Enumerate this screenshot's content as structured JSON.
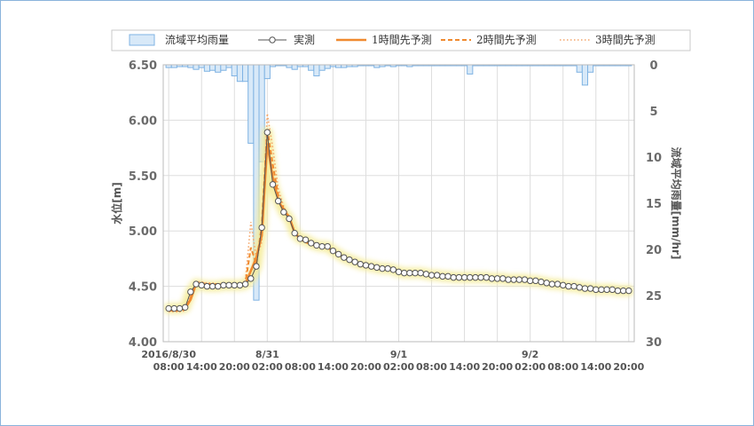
{
  "chart_data": {
    "type": "line",
    "y_left": {
      "label": "水位[m]",
      "ylim": [
        4.0,
        6.5
      ],
      "ticks": [
        "4.00",
        "4.50",
        "5.00",
        "5.50",
        "6.00",
        "6.50"
      ]
    },
    "y_right": {
      "label": "流域平均雨量[mm/hr]",
      "ylim": [
        0,
        30
      ],
      "ticks": [
        "0",
        "5",
        "10",
        "15",
        "20",
        "25",
        "30"
      ],
      "inverted": true
    },
    "x_axis": {
      "range_hours": [
        -1,
        61
      ],
      "tick_labels": [
        {
          "h": 0,
          "time": "08:00",
          "date": "2016/8/30"
        },
        {
          "h": 6,
          "time": "14:00",
          "date": ""
        },
        {
          "h": 12,
          "time": "20:00",
          "date": ""
        },
        {
          "h": 18,
          "time": "02:00",
          "date": "8/31"
        },
        {
          "h": 24,
          "time": "08:00",
          "date": ""
        },
        {
          "h": 30,
          "time": "14:00",
          "date": ""
        },
        {
          "h": 36,
          "time": "20:00",
          "date": ""
        },
        {
          "h": 42,
          "time": "02:00",
          "date": "9/1"
        },
        {
          "h": 48,
          "time": "08:00",
          "date": ""
        },
        {
          "h": 54,
          "time": "14:00",
          "date": ""
        },
        {
          "h": 60,
          "time": "20:00",
          "date": ""
        },
        {
          "h": 66,
          "time": "02:00",
          "date": "9/2"
        },
        {
          "h": 72,
          "time": "08:00",
          "date": ""
        },
        {
          "h": 78,
          "time": "14:00",
          "date": ""
        },
        {
          "h": 84,
          "time": "20:00",
          "date": ""
        }
      ]
    },
    "legend": [
      {
        "label": "流域平均雨量",
        "kind": "bar"
      },
      {
        "label": "実測",
        "kind": "marker-line"
      },
      {
        "label": "1時間先予測",
        "kind": "solid"
      },
      {
        "label": "2時間先予測",
        "kind": "dashed"
      },
      {
        "label": "3時間先予測",
        "kind": "dotted"
      }
    ],
    "rainfall": [
      0.3,
      0.3,
      0.2,
      0.2,
      0.3,
      0.5,
      0.3,
      0.7,
      0.6,
      0.8,
      0.6,
      0.3,
      1.2,
      1.8,
      1.8,
      8.5,
      25.5,
      10.5,
      1.5,
      0.2,
      0.1,
      0.1,
      0.3,
      0.5,
      0.2,
      0.2,
      0.6,
      1.2,
      0.6,
      0.4,
      0.2,
      0.3,
      0.3,
      0.2,
      0.2,
      0.1,
      0.1,
      0.1,
      0.3,
      0.2,
      0.1,
      0.2,
      0.1,
      0.1,
      0.2,
      0.1,
      0.1,
      0.1,
      0.1,
      0.1,
      0.1,
      0.1,
      0.1,
      0.1,
      0.1,
      1.0,
      0.1,
      0.1,
      0.1,
      0.1,
      0.1,
      0.1,
      0.1,
      0.1,
      0.1,
      0.1,
      0.1,
      0.1,
      0.1,
      0.1,
      0.1,
      0.1,
      0.1,
      0.1,
      0.1,
      0.8,
      2.2,
      0.8,
      0.1,
      0.1,
      0.1,
      0.1,
      0.1,
      0.1,
      0.1
    ],
    "series": [
      {
        "name": "実測",
        "values": [
          4.3,
          4.3,
          4.3,
          4.31,
          4.45,
          4.52,
          4.51,
          4.5,
          4.5,
          4.5,
          4.51,
          4.51,
          4.51,
          4.51,
          4.52,
          4.57,
          4.68,
          5.03,
          5.89,
          5.42,
          5.27,
          5.17,
          5.11,
          4.98,
          4.93,
          4.92,
          4.89,
          4.87,
          4.86,
          4.86,
          4.82,
          4.79,
          4.76,
          4.74,
          4.72,
          4.7,
          4.69,
          4.68,
          4.67,
          4.66,
          4.66,
          4.65,
          4.63,
          4.62,
          4.62,
          4.62,
          4.62,
          4.61,
          4.6,
          4.6,
          4.59,
          4.59,
          4.58,
          4.58,
          4.58,
          4.58,
          4.58,
          4.58,
          4.58,
          4.57,
          4.57,
          4.57,
          4.56,
          4.56,
          4.56,
          4.56,
          4.55,
          4.55,
          4.54,
          4.53,
          4.52,
          4.52,
          4.51,
          4.5,
          4.5,
          4.49,
          4.48,
          4.48,
          4.47,
          4.47,
          4.47,
          4.47,
          4.46,
          4.46,
          4.46
        ]
      },
      {
        "name": "1時間先予測",
        "values": [
          4.29,
          4.29,
          4.29,
          4.3,
          4.38,
          4.52,
          4.52,
          4.51,
          4.51,
          4.51,
          4.51,
          4.51,
          4.51,
          4.52,
          4.52,
          4.64,
          4.76,
          4.96,
          5.79,
          5.48,
          5.28,
          5.18,
          5.13,
          4.98,
          4.93,
          4.9,
          4.88,
          4.87,
          4.86,
          4.85,
          4.82,
          4.79,
          4.76,
          4.74,
          4.72,
          4.7,
          4.69,
          4.68,
          4.67,
          4.66,
          4.66,
          4.65,
          4.63,
          4.62,
          4.62,
          4.62,
          4.62,
          4.61,
          4.6,
          4.6,
          4.59,
          4.59,
          4.58,
          4.58,
          4.58,
          4.58,
          4.58,
          4.58,
          4.58,
          4.57,
          4.57,
          4.57,
          4.56,
          4.56,
          4.56,
          4.56,
          4.55,
          4.55,
          4.54,
          4.53,
          4.52,
          4.52,
          4.51,
          4.5,
          4.5,
          4.49,
          4.48,
          4.48,
          4.47,
          4.47,
          4.47,
          4.47,
          4.46,
          4.46,
          4.46
        ]
      },
      {
        "name": "2時間先予測",
        "values": [
          4.28,
          4.28,
          4.28,
          4.29,
          4.4,
          4.53,
          4.53,
          4.52,
          4.52,
          4.52,
          4.51,
          4.51,
          4.51,
          4.52,
          4.53,
          4.85,
          4.7,
          5.05,
          5.92,
          5.6,
          5.32,
          5.2,
          5.12,
          4.99,
          4.94,
          4.91,
          4.88,
          4.87,
          4.86,
          4.85,
          4.82,
          4.79,
          4.76,
          4.74,
          4.72,
          4.7,
          4.69,
          4.68,
          4.67,
          4.66,
          4.66,
          4.65,
          4.63,
          4.62,
          4.62,
          4.62,
          4.62,
          4.61,
          4.6,
          4.6,
          4.59,
          4.59,
          4.58,
          4.58,
          4.58,
          4.58,
          4.58,
          4.58,
          4.58,
          4.57,
          4.57,
          4.57,
          4.56,
          4.56,
          4.56,
          4.56,
          4.55,
          4.55,
          4.54,
          4.53,
          4.52,
          4.52,
          4.51,
          4.5,
          4.5,
          4.49,
          4.48,
          4.48,
          4.47,
          4.47,
          4.47,
          4.47,
          4.46,
          4.46,
          4.46
        ]
      },
      {
        "name": "3時間先予測",
        "values": [
          4.27,
          4.27,
          4.27,
          4.28,
          4.42,
          4.54,
          4.54,
          4.53,
          4.53,
          4.52,
          4.52,
          4.52,
          4.52,
          4.52,
          4.55,
          5.08,
          4.75,
          4.9,
          6.06,
          5.75,
          5.38,
          5.22,
          5.13,
          5.0,
          4.95,
          4.92,
          4.89,
          4.88,
          4.86,
          4.85,
          4.82,
          4.79,
          4.76,
          4.74,
          4.72,
          4.7,
          4.69,
          4.68,
          4.67,
          4.66,
          4.66,
          4.65,
          4.63,
          4.62,
          4.62,
          4.62,
          4.62,
          4.61,
          4.6,
          4.6,
          4.59,
          4.59,
          4.58,
          4.58,
          4.58,
          4.58,
          4.58,
          4.58,
          4.58,
          4.57,
          4.57,
          4.57,
          4.56,
          4.56,
          4.56,
          4.56,
          4.55,
          4.55,
          4.54,
          4.53,
          4.52,
          4.52,
          4.51,
          4.5,
          4.5,
          4.49,
          4.48,
          4.48,
          4.47,
          4.47,
          4.47,
          4.47,
          4.46,
          4.46,
          4.46
        ]
      }
    ],
    "colors": {
      "rain_fill": "#d8e9f8",
      "rain_stroke": "#7fb3e3",
      "observed": "#555555",
      "forecast": "#f08a30",
      "forecast_light": "#f4a56a",
      "highlight": "#f5ec9a",
      "grid": "#dddddd"
    }
  }
}
